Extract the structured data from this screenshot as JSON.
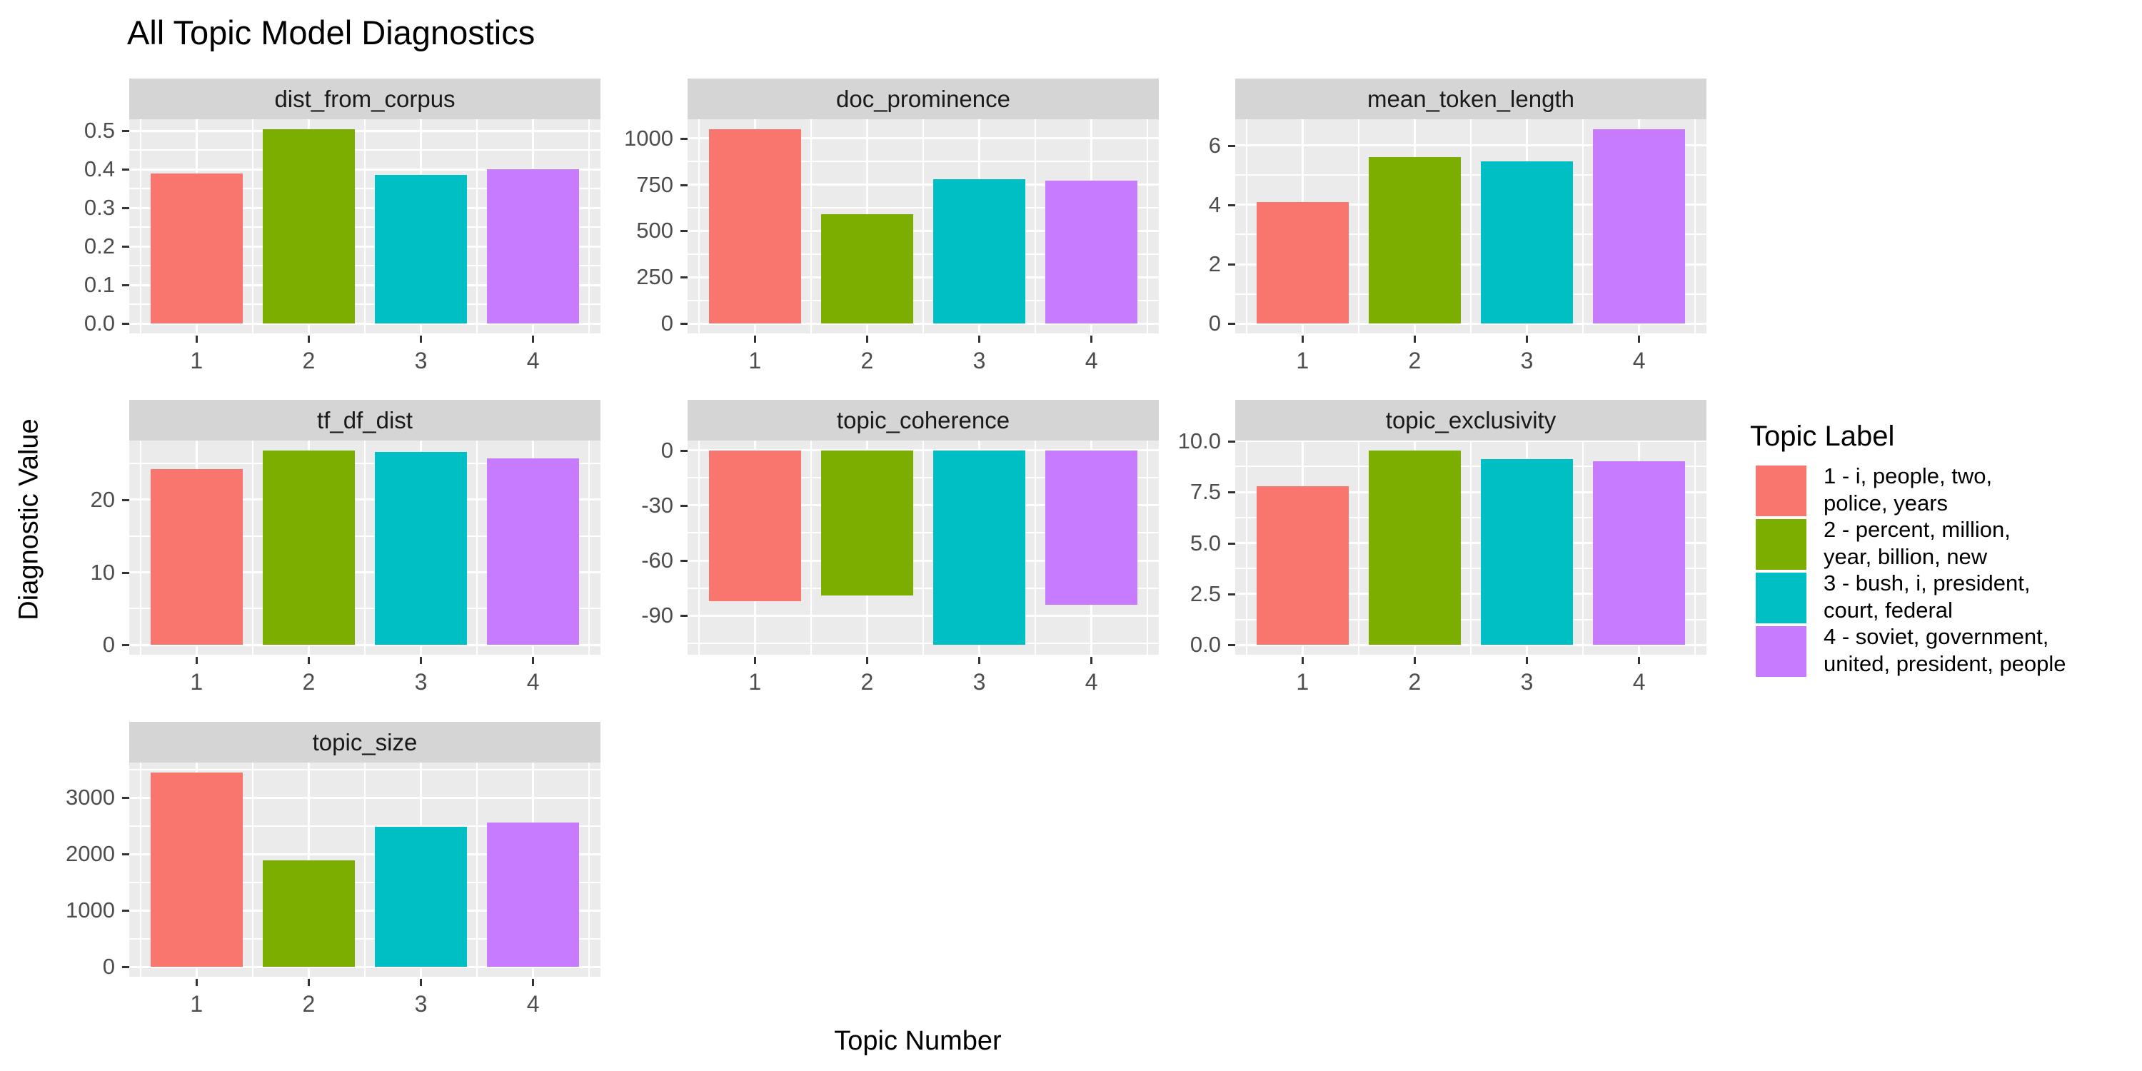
{
  "title": "All Topic Model Diagnostics",
  "axes": {
    "x_label": "Topic Number",
    "y_label": "Diagnostic Value"
  },
  "categories": [
    "1",
    "2",
    "3",
    "4"
  ],
  "palette": [
    "#F8766D",
    "#7CAE00",
    "#00BFC4",
    "#C77CFF"
  ],
  "theme": {
    "panel_bg": "#EBEBEB",
    "strip_bg": "#D5D5D5",
    "gridline": "#FFFFFF",
    "tick_label": "#4D4D4D",
    "strip_text": "#1A1A1A",
    "tick_mark": "#333333",
    "text": "#000000",
    "background": "#FFFFFF"
  },
  "legend": {
    "title": "Topic Label",
    "items": [
      {
        "color": "#F8766D",
        "label_lines": [
          "1 - i, people, two,",
          "police, years"
        ]
      },
      {
        "color": "#7CAE00",
        "label_lines": [
          "2 - percent, million,",
          "year, billion, new"
        ]
      },
      {
        "color": "#00BFC4",
        "label_lines": [
          "3 - bush, i, president,",
          "court, federal"
        ]
      },
      {
        "color": "#C77CFF",
        "label_lines": [
          "4 - soviet, government,",
          "united, president, people"
        ]
      }
    ]
  },
  "chart_data": {
    "type": "bar",
    "title": "All Topic Model Diagnostics",
    "xlabel": "Topic Number",
    "ylabel": "Diagnostic Value",
    "grid": true,
    "legend_position": "right",
    "categories": [
      "1",
      "2",
      "3",
      "4"
    ],
    "series": [
      {
        "name": "1 - i, people, two, police, years",
        "color": "#F8766D"
      },
      {
        "name": "2 - percent, million, year, billion, new",
        "color": "#7CAE00"
      },
      {
        "name": "3 - bush, i, president, court, federal",
        "color": "#00BFC4"
      },
      {
        "name": "4 - soviet, government, united, president, people",
        "color": "#C77CFF"
      }
    ],
    "facets": [
      {
        "title": "dist_from_corpus",
        "values": [
          0.39,
          0.505,
          0.385,
          0.4
        ],
        "yticks": [
          0,
          0.1,
          0.2,
          0.3,
          0.4,
          0.5
        ],
        "ytick_labels": [
          "0.0",
          "0.1",
          "0.2",
          "0.3",
          "0.4",
          "0.5"
        ]
      },
      {
        "title": "doc_prominence",
        "values": [
          1050,
          592,
          781,
          772
        ],
        "yticks": [
          0,
          250,
          500,
          750,
          1000
        ],
        "ytick_labels": [
          "0",
          "250",
          "500",
          "750",
          "1000"
        ]
      },
      {
        "title": "mean_token_length",
        "values": [
          4.1,
          5.6,
          5.45,
          6.55
        ],
        "yticks": [
          0,
          2,
          4,
          6
        ],
        "ytick_labels": [
          "0",
          "2",
          "4",
          "6"
        ]
      },
      {
        "title": "tf_df_dist",
        "values": [
          24.2,
          26.8,
          26.6,
          25.7
        ],
        "yticks": [
          0,
          10,
          20
        ],
        "ytick_labels": [
          "0",
          "10",
          "20"
        ]
      },
      {
        "title": "topic_coherence",
        "values": [
          -82,
          -79,
          -106,
          -84
        ],
        "yticks": [
          -90,
          -60,
          -30,
          0
        ],
        "ytick_labels": [
          "-90",
          "-60",
          "-30",
          "0"
        ]
      },
      {
        "title": "topic_exclusivity",
        "values": [
          7.8,
          9.55,
          9.1,
          9.0
        ],
        "yticks": [
          0,
          2.5,
          5,
          7.5,
          10
        ],
        "ytick_labels": [
          "0.0",
          "2.5",
          "5.0",
          "7.5",
          "10.0"
        ]
      },
      {
        "title": "topic_size",
        "values": [
          3450,
          1895,
          2490,
          2560
        ],
        "yticks": [
          0,
          1000,
          2000,
          3000
        ],
        "ytick_labels": [
          "0",
          "1000",
          "2000",
          "3000"
        ]
      }
    ]
  }
}
